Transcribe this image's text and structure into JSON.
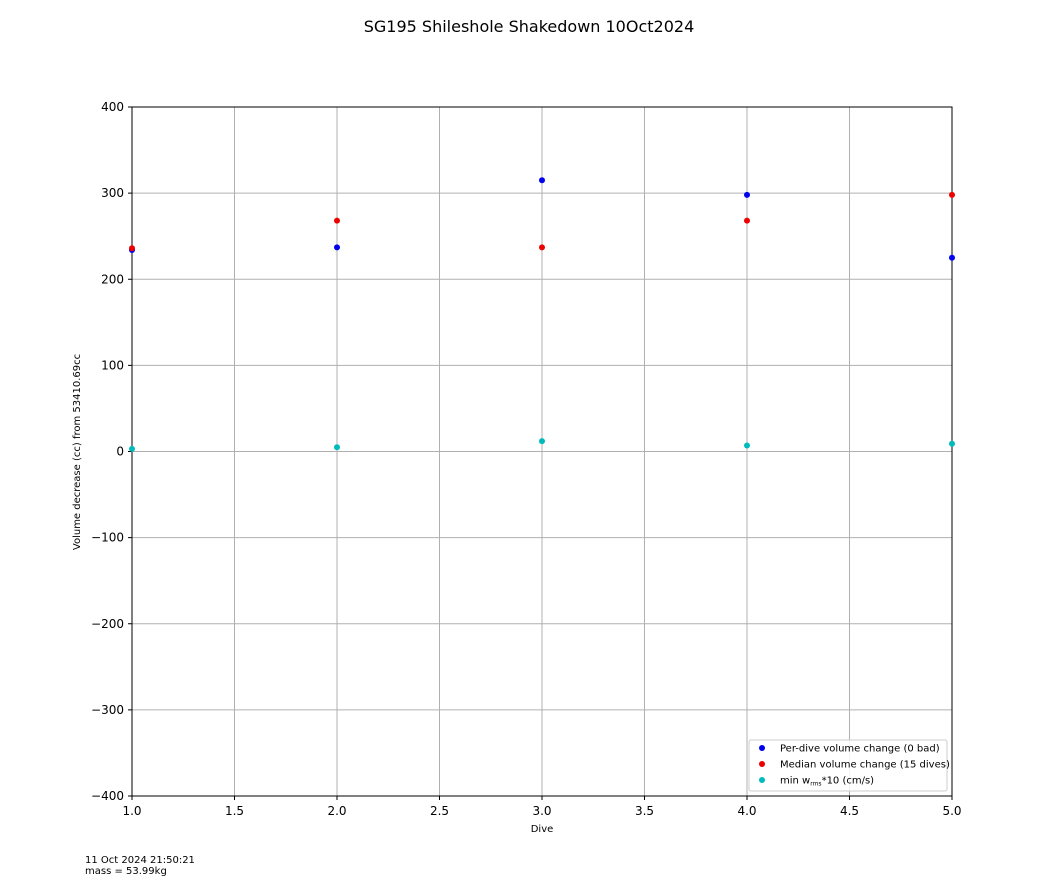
{
  "chart_data": {
    "type": "scatter",
    "title": "SG195 Shileshole Shakedown 10Oct2024",
    "xlabel": "Dive",
    "ylabel": "Volume decrease (cc) from 53410.69cc",
    "xlim": [
      1.0,
      5.0
    ],
    "ylim": [
      -400,
      400
    ],
    "x_ticks": [
      "1.0",
      "1.5",
      "2.0",
      "2.5",
      "3.0",
      "3.5",
      "4.0",
      "4.5",
      "5.0"
    ],
    "y_ticks": [
      "400",
      "300",
      "200",
      "100",
      "0",
      "−100",
      "−200",
      "−300",
      "−400"
    ],
    "grid": true,
    "legend_position": "lower-right",
    "series": [
      {
        "name": "Per-dive volume change (0 bad)",
        "color": "#0000ee",
        "x": [
          1,
          2,
          3,
          4,
          5
        ],
        "y": [
          234,
          237,
          315,
          298,
          225
        ]
      },
      {
        "name": "Median volume change (15 dives)",
        "color": "#ee0000",
        "x": [
          1,
          2,
          3,
          4,
          5
        ],
        "y": [
          236,
          268,
          237,
          268,
          298
        ]
      },
      {
        "name": "min w_rms*10 (cm/s)",
        "color": "#00bbbb",
        "x": [
          1,
          2,
          3,
          4,
          5
        ],
        "y": [
          3,
          5,
          12,
          7,
          9
        ]
      }
    ],
    "legend_labels": [
      {
        "text": "Per-dive volume change (0 bad)"
      },
      {
        "text": "Median volume change (15 dives)"
      },
      {
        "text": "min w",
        "sub": "rms",
        "suffix": "*10 (cm/s)"
      }
    ]
  },
  "footer": {
    "timestamp": "11 Oct 2024 21:50:21",
    "mass": "mass = 53.99kg"
  }
}
